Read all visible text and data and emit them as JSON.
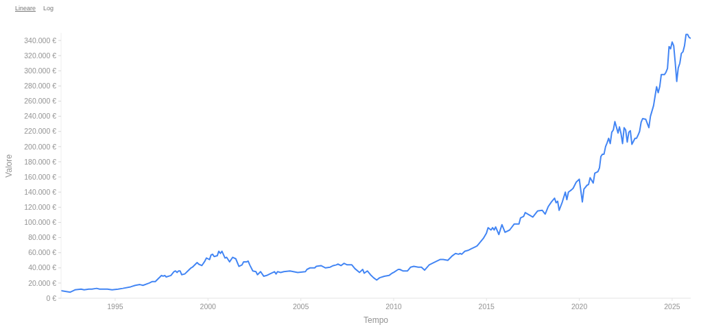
{
  "chart_data": {
    "type": "line",
    "xlabel": "Tempo",
    "ylabel": "Valore",
    "annotations": [
      "Lineare",
      "Log"
    ],
    "color": "#4285f4",
    "x": [
      "1992-02",
      "1992-08",
      "1992-11",
      "1993-03",
      "1993-05",
      "1993-08",
      "1993-10",
      "1994-01",
      "1994-03",
      "1994-06",
      "1994-08",
      "1994-11",
      "1995-03",
      "1995-06",
      "1995-11",
      "1996-02",
      "1996-05",
      "1996-07",
      "1996-11",
      "1997-01",
      "1997-03",
      "1997-05",
      "1997-07",
      "1997-08",
      "1997-09",
      "1997-10",
      "1998-01",
      "1998-03",
      "1998-04",
      "1998-05",
      "1998-06",
      "1998-07",
      "1998-08",
      "1998-10",
      "1998-12",
      "1999-02",
      "1999-03",
      "1999-05",
      "1999-06",
      "1999-07",
      "1999-09",
      "1999-11",
      "1999-12",
      "2000-02",
      "2000-03",
      "2000-04",
      "2000-05",
      "2000-07",
      "2000-08",
      "2000-09",
      "2000-10",
      "2000-12",
      "2001-01",
      "2001-03",
      "2001-05",
      "2001-07",
      "2001-09",
      "2001-11",
      "2001-12",
      "2002-02",
      "2002-03",
      "2002-04",
      "2002-06",
      "2002-08",
      "2002-09",
      "2002-11",
      "2003-01",
      "2003-03",
      "2003-05",
      "2003-08",
      "2003-09",
      "2003-10",
      "2003-12",
      "2004-02",
      "2004-06",
      "2004-11",
      "2005-04",
      "2005-05",
      "2005-07",
      "2005-10",
      "2005-11",
      "2006-02",
      "2006-05",
      "2006-08",
      "2006-10",
      "2006-12",
      "2007-01",
      "2007-03",
      "2007-05",
      "2007-07",
      "2007-10",
      "2007-12",
      "2008-03",
      "2008-05",
      "2008-06",
      "2008-08",
      "2008-10",
      "2008-12",
      "2009-02",
      "2009-04",
      "2009-07",
      "2009-10",
      "2009-12",
      "2010-01",
      "2010-04",
      "2010-05",
      "2010-07",
      "2010-10",
      "2010-12",
      "2011-02",
      "2011-05",
      "2011-07",
      "2011-09",
      "2011-12",
      "2012-04",
      "2012-07",
      "2012-09",
      "2012-12",
      "2013-03",
      "2013-05",
      "2013-07",
      "2013-08",
      "2013-09",
      "2013-11",
      "2014-01",
      "2014-03",
      "2014-06",
      "2014-07",
      "2014-09",
      "2014-11",
      "2015-01",
      "2015-02",
      "2015-04",
      "2015-05",
      "2015-06",
      "2015-07",
      "2015-09",
      "2015-11",
      "2016-01",
      "2016-04",
      "2016-07",
      "2016-10",
      "2016-11",
      "2017-01",
      "2017-02",
      "2017-07",
      "2017-10",
      "2018-01",
      "2018-03",
      "2018-05",
      "2018-07",
      "2018-09",
      "2018-10",
      "2018-11",
      "2018-12",
      "2019-02",
      "2019-04",
      "2019-05",
      "2019-06",
      "2019-08",
      "2019-09",
      "2019-11",
      "2020-01",
      "2020-03",
      "2020-04",
      "2020-06",
      "2020-07",
      "2020-08",
      "2020-10",
      "2020-11",
      "2021-01",
      "2021-02",
      "2021-03",
      "2021-04",
      "2021-05",
      "2021-06",
      "2021-07",
      "2021-08",
      "2021-09",
      "2021-10",
      "2021-11",
      "2021-12",
      "2022-02",
      "2022-03",
      "2022-04",
      "2022-05",
      "2022-06",
      "2022-07",
      "2022-08",
      "2022-09",
      "2022-10",
      "2022-11",
      "2023-01",
      "2023-02",
      "2023-03",
      "2023-04",
      "2023-05",
      "2023-06",
      "2023-08",
      "2023-10",
      "2023-11",
      "2024-01",
      "2024-02",
      "2024-03",
      "2024-04",
      "2024-05",
      "2024-06",
      "2024-08",
      "2024-09",
      "2024-10",
      "2024-11",
      "2024-12",
      "2025-01",
      "2025-02",
      "2025-03",
      "2025-04",
      "2025-05",
      "2025-06",
      "2025-07",
      "2025-08",
      "2025-09",
      "2025-10",
      "2025-11",
      "2025-12",
      "2026-01"
    ],
    "values": [
      10000,
      8000,
      11000,
      12000,
      11000,
      12000,
      12000,
      13000,
      12000,
      12000,
      12000,
      11000,
      12000,
      13000,
      15000,
      17000,
      18000,
      17000,
      20000,
      22000,
      22000,
      26000,
      30000,
      29000,
      30000,
      28000,
      30000,
      35000,
      36000,
      34000,
      36000,
      36000,
      31000,
      32000,
      36000,
      40000,
      41000,
      45000,
      47000,
      45000,
      43000,
      49000,
      53000,
      51000,
      57000,
      58000,
      55000,
      56000,
      62000,
      59000,
      62000,
      53000,
      54000,
      48000,
      54000,
      52000,
      42000,
      44000,
      48000,
      48000,
      49000,
      44000,
      36000,
      35000,
      31000,
      35000,
      29000,
      30000,
      32000,
      35000,
      32000,
      35000,
      34000,
      35000,
      36000,
      34000,
      35000,
      38000,
      40000,
      40000,
      42000,
      43000,
      40000,
      41000,
      43000,
      44000,
      45000,
      43000,
      46000,
      44000,
      44000,
      39000,
      34000,
      38000,
      33000,
      36000,
      31000,
      27000,
      24000,
      27000,
      29000,
      30000,
      33000,
      34000,
      38000,
      38000,
      36000,
      36000,
      41000,
      42000,
      41000,
      41000,
      37000,
      44000,
      48000,
      51000,
      51000,
      50000,
      56000,
      59000,
      58000,
      59000,
      58000,
      62000,
      63000,
      65000,
      68000,
      69000,
      74000,
      79000,
      86000,
      93000,
      90000,
      93000,
      90000,
      94000,
      84000,
      97000,
      87000,
      90000,
      98000,
      98000,
      106000,
      108000,
      113000,
      107000,
      115000,
      116000,
      111000,
      121000,
      127000,
      132000,
      126000,
      128000,
      116000,
      127000,
      140000,
      130000,
      140000,
      143000,
      145000,
      153000,
      157000,
      127000,
      144000,
      149000,
      150000,
      159000,
      152000,
      165000,
      167000,
      172000,
      187000,
      190000,
      190000,
      200000,
      205000,
      211000,
      204000,
      219000,
      222000,
      233000,
      218000,
      226000,
      217000,
      204000,
      225000,
      222000,
      206000,
      219000,
      221000,
      203000,
      211000,
      211000,
      215000,
      220000,
      232000,
      237000,
      236000,
      225000,
      240000,
      254000,
      267000,
      279000,
      271000,
      279000,
      295000,
      295000,
      298000,
      303000,
      332000,
      329000,
      338000,
      333000,
      312000,
      286000,
      304000,
      310000,
      323000,
      325000,
      333000,
      348000,
      348000,
      344000,
      343000
    ],
    "xlim": [
      "1992-02",
      "2026-01"
    ],
    "xticks": [
      "1995",
      "2000",
      "2005",
      "2010",
      "2015",
      "2020",
      "2025"
    ],
    "ylim": [
      0,
      350000
    ],
    "yticks": [
      {
        "value": 0,
        "label": "0 €"
      },
      {
        "value": 20000,
        "label": "20.000 €"
      },
      {
        "value": 40000,
        "label": "40.000 €"
      },
      {
        "value": 60000,
        "label": "60.000 €"
      },
      {
        "value": 80000,
        "label": "80.000 €"
      },
      {
        "value": 100000,
        "label": "100.000 €"
      },
      {
        "value": 120000,
        "label": "120.000 €"
      },
      {
        "value": 140000,
        "label": "140.000 €"
      },
      {
        "value": 160000,
        "label": "160.000 €"
      },
      {
        "value": 180000,
        "label": "180.000 €"
      },
      {
        "value": 200000,
        "label": "200.000 €"
      },
      {
        "value": 220000,
        "label": "220.000 €"
      },
      {
        "value": 240000,
        "label": "240.000 €"
      },
      {
        "value": 260000,
        "label": "260.000 €"
      },
      {
        "value": 280000,
        "label": "280.000 €"
      },
      {
        "value": 300000,
        "label": "300.000 €"
      },
      {
        "value": 320000,
        "label": "320.000 €"
      },
      {
        "value": 340000,
        "label": "340.000 €"
      }
    ]
  }
}
